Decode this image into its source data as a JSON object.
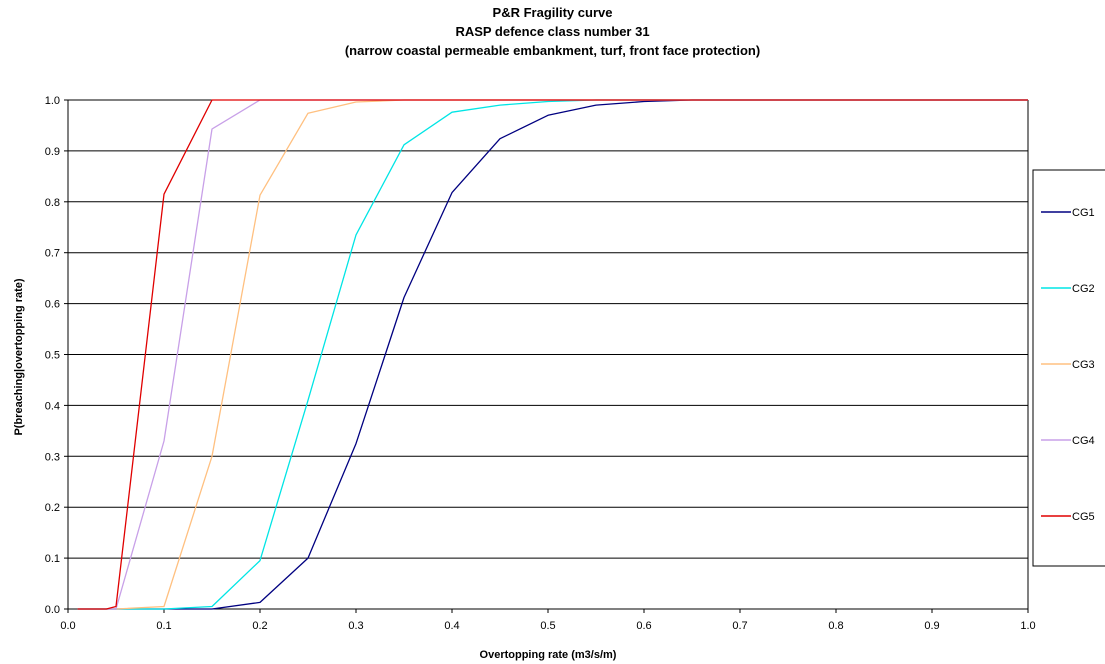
{
  "chart_data": {
    "type": "line",
    "title": [
      "P&R Fragility curve",
      "RASP defence class number 31",
      "(narrow coastal permeable embankment, turf, front face protection)"
    ],
    "xlabel": "Overtopping rate (m3/s/m)",
    "ylabel": "P(breaching|overtopping rate)",
    "xlim": [
      0.0,
      1.0
    ],
    "ylim": [
      0.0,
      1.0
    ],
    "x_ticks": [
      "0.0",
      "0.1",
      "0.2",
      "0.3",
      "0.4",
      "0.5",
      "0.6",
      "0.7",
      "0.8",
      "0.9",
      "1.0"
    ],
    "y_ticks": [
      "0.0",
      "0.1",
      "0.2",
      "0.3",
      "0.4",
      "0.5",
      "0.6",
      "0.7",
      "0.8",
      "0.9",
      "1.0"
    ],
    "grid": "horizontal",
    "legend_position": "right",
    "series": [
      {
        "name": "CG1",
        "color": "#000080",
        "x": [
          0.01,
          0.05,
          0.1,
          0.15,
          0.2,
          0.25,
          0.3,
          0.35,
          0.4,
          0.45,
          0.5,
          0.55,
          0.6,
          0.65,
          0.7,
          0.8,
          0.9,
          1.0
        ],
        "y": [
          0.0,
          0.0,
          0.0,
          0.0,
          0.013,
          0.1,
          0.325,
          0.612,
          0.818,
          0.924,
          0.97,
          0.99,
          0.997,
          1.0,
          1.0,
          1.0,
          1.0,
          1.0
        ]
      },
      {
        "name": "CG2",
        "color": "#00e5e5",
        "x": [
          0.01,
          0.05,
          0.1,
          0.15,
          0.2,
          0.25,
          0.3,
          0.35,
          0.4,
          0.45,
          0.5,
          0.55,
          0.6,
          0.7,
          0.8,
          0.9,
          1.0
        ],
        "y": [
          0.0,
          0.0,
          0.0,
          0.005,
          0.095,
          0.41,
          0.735,
          0.912,
          0.976,
          0.99,
          0.997,
          1.0,
          1.0,
          1.0,
          1.0,
          1.0,
          1.0
        ]
      },
      {
        "name": "CG3",
        "color": "#ffc080",
        "x": [
          0.01,
          0.05,
          0.1,
          0.15,
          0.2,
          0.25,
          0.3,
          0.35,
          0.4,
          0.5,
          0.6,
          0.7,
          0.8,
          0.9,
          1.0
        ],
        "y": [
          0.0,
          0.0,
          0.005,
          0.3,
          0.813,
          0.974,
          0.996,
          1.0,
          1.0,
          1.0,
          1.0,
          1.0,
          1.0,
          1.0,
          1.0
        ]
      },
      {
        "name": "CG4",
        "color": "#c8a0e8",
        "x": [
          0.01,
          0.04,
          0.05,
          0.1,
          0.15,
          0.2,
          0.3,
          0.4,
          0.5,
          0.6,
          0.7,
          0.8,
          0.9,
          1.0
        ],
        "y": [
          0.0,
          0.0,
          0.0,
          0.33,
          0.943,
          1.0,
          1.0,
          1.0,
          1.0,
          1.0,
          1.0,
          1.0,
          1.0,
          1.0
        ]
      },
      {
        "name": "CG5",
        "color": "#e00000",
        "x": [
          0.01,
          0.04,
          0.05,
          0.1,
          0.15,
          0.2,
          0.3,
          0.4,
          0.5,
          0.6,
          0.7,
          0.8,
          0.9,
          1.0
        ],
        "y": [
          0.0,
          0.0,
          0.005,
          0.815,
          1.0,
          1.0,
          1.0,
          1.0,
          1.0,
          1.0,
          1.0,
          1.0,
          1.0,
          1.0
        ]
      }
    ]
  }
}
